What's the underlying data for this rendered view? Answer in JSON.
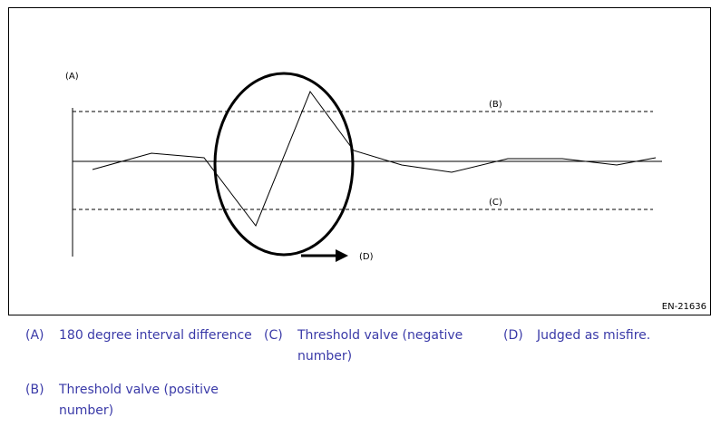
{
  "figure": {
    "figure_id": "EN-21636",
    "label_a": "(A)",
    "label_b": "(B)",
    "label_c": "(C)",
    "label_d": "(D)"
  },
  "legend": {
    "items": [
      {
        "key": "(A)",
        "text_lines": [
          "180 degree interval difference"
        ]
      },
      {
        "key": "(B)",
        "text_lines": [
          "Threshold valve (positive",
          "number)"
        ]
      },
      {
        "key": "(C)",
        "text_lines": [
          "Threshold valve (negative",
          "number)"
        ]
      },
      {
        "key": "(D)",
        "text_lines": [
          "Judged as misfire."
        ]
      }
    ]
  },
  "colors": {
    "legend_text": "#3a3aa8",
    "line": "#000000"
  }
}
